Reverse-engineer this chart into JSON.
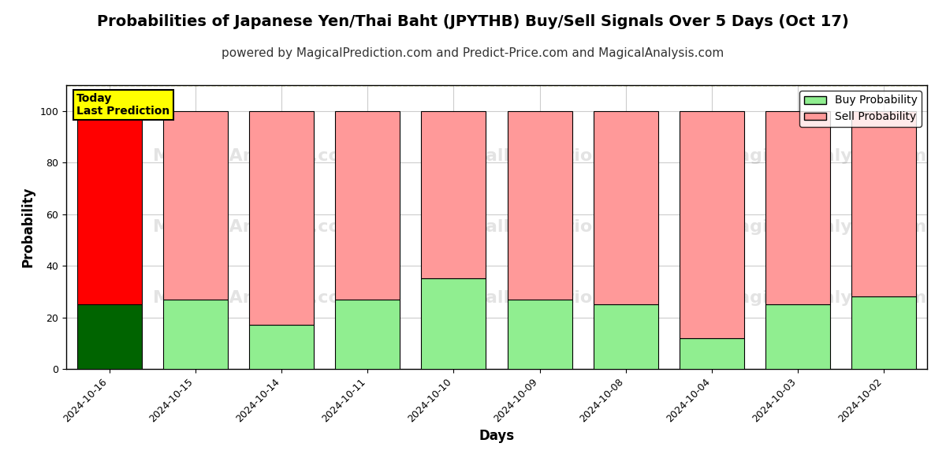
{
  "title": "Probabilities of Japanese Yen/Thai Baht (JPYTHB) Buy/Sell Signals Over 5 Days (Oct 17)",
  "subtitle": "powered by MagicalPrediction.com and Predict-Price.com and MagicalAnalysis.com",
  "xlabel": "Days",
  "ylabel": "Probability",
  "dates": [
    "2024-10-16",
    "2024-10-15",
    "2024-10-14",
    "2024-10-11",
    "2024-10-10",
    "2024-10-09",
    "2024-10-08",
    "2024-10-04",
    "2024-10-03",
    "2024-10-02"
  ],
  "buy_values": [
    25,
    27,
    17,
    27,
    35,
    27,
    25,
    12,
    25,
    28
  ],
  "sell_values": [
    75,
    73,
    83,
    73,
    65,
    73,
    75,
    88,
    75,
    72
  ],
  "today_index": 0,
  "today_buy_color": "#006400",
  "today_sell_color": "#ff0000",
  "other_buy_color": "#90ee90",
  "other_sell_color": "#ff9999",
  "today_label_bg": "#ffff00",
  "today_label_text": "Today\nLast Prediction",
  "ylim": [
    0,
    110
  ],
  "yticks": [
    0,
    20,
    40,
    60,
    80,
    100
  ],
  "dashed_line_y": 110,
  "bar_edge_color": "#000000",
  "bar_linewidth": 0.8,
  "grid_color": "#cccccc",
  "background_color": "#ffffff",
  "title_fontsize": 14,
  "subtitle_fontsize": 11,
  "axis_label_fontsize": 12,
  "tick_fontsize": 9,
  "legend_fontsize": 10
}
